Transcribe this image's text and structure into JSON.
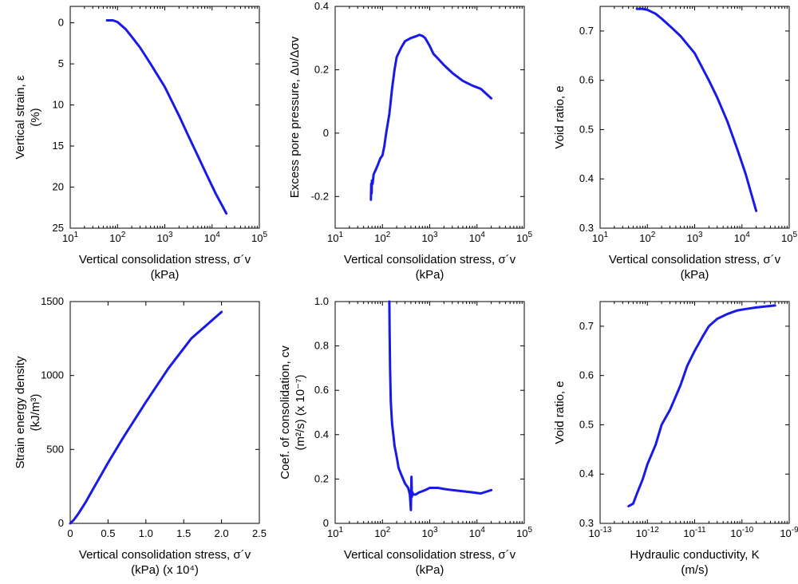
{
  "figure": {
    "series_color": "#1a1ae6",
    "axis_color": "#000000"
  },
  "chart_data": [
    {
      "id": "strain",
      "type": "line",
      "x_scale": "log",
      "xlim": [
        10,
        100000
      ],
      "xticks": [
        10,
        100,
        1000,
        10000,
        100000
      ],
      "ylim": [
        25,
        -2
      ],
      "y_inverted": true,
      "yticks": [
        0,
        5,
        10,
        15,
        20,
        25
      ],
      "xlabel": "Vertical consolidation stress, σ´v",
      "xlabel_line2": "(kPa)",
      "ylabel": "Vertical strain, ε",
      "ylabel_line2": "(%)",
      "series": [
        {
          "x": [
            60,
            80,
            100,
            150,
            200,
            300,
            500,
            1000,
            2000,
            3000,
            5000,
            8000,
            12000,
            20000
          ],
          "y": [
            -0.3,
            -0.3,
            -0.1,
            0.8,
            1.7,
            3.0,
            5.0,
            7.8,
            11.3,
            13.5,
            16.2,
            18.7,
            20.8,
            23.2
          ]
        }
      ]
    },
    {
      "id": "pore",
      "type": "line",
      "x_scale": "log",
      "xlim": [
        10,
        100000
      ],
      "xticks": [
        10,
        100,
        1000,
        10000,
        100000
      ],
      "ylim": [
        -0.3,
        0.4
      ],
      "yticks": [
        -0.2,
        0,
        0.2,
        0.4
      ],
      "ytick_labels": [
        "-0.2",
        "0",
        "0.2",
        "0.4"
      ],
      "xlabel": "Vertical consolidation stress, σ´v",
      "xlabel_line2": "(kPa)",
      "ylabel": "Excess pore pressure, Δυ/Δσv",
      "series": [
        {
          "x": [
            57,
            58,
            59,
            60,
            62,
            65,
            70,
            75,
            80,
            90,
            100,
            110,
            120,
            140,
            160,
            180,
            200,
            250,
            300,
            400,
            500,
            600,
            700,
            800,
            1000,
            1200,
            1500,
            2000,
            3000,
            5000,
            8000,
            12000,
            20000
          ],
          "y": [
            -0.21,
            -0.16,
            -0.19,
            -0.15,
            -0.16,
            -0.13,
            -0.12,
            -0.11,
            -0.1,
            -0.08,
            -0.07,
            -0.04,
            0.0,
            0.06,
            0.14,
            0.2,
            0.24,
            0.27,
            0.29,
            0.3,
            0.305,
            0.31,
            0.307,
            0.3,
            0.275,
            0.25,
            0.235,
            0.215,
            0.19,
            0.165,
            0.15,
            0.14,
            0.11
          ]
        }
      ]
    },
    {
      "id": "void_stress",
      "type": "line",
      "x_scale": "log",
      "xlim": [
        10,
        100000
      ],
      "xticks": [
        10,
        100,
        1000,
        10000,
        100000
      ],
      "ylim": [
        0.3,
        0.75
      ],
      "yticks": [
        0.3,
        0.4,
        0.5,
        0.6,
        0.7
      ],
      "ytick_labels": [
        "0.3",
        "0.4",
        "0.5",
        "0.6",
        "0.7"
      ],
      "xlabel": "Vertical consolidation stress, σ´v",
      "xlabel_line2": "(kPa)",
      "ylabel": "Void ratio, e",
      "series": [
        {
          "x": [
            60,
            80,
            100,
            150,
            200,
            300,
            500,
            1000,
            2000,
            3000,
            5000,
            8000,
            12000,
            20000
          ],
          "y": [
            0.745,
            0.745,
            0.743,
            0.735,
            0.725,
            0.71,
            0.69,
            0.655,
            0.6,
            0.565,
            0.515,
            0.46,
            0.41,
            0.335
          ]
        }
      ]
    },
    {
      "id": "energy",
      "type": "line",
      "x_scale": "linear",
      "xlim": [
        0,
        2.5
      ],
      "xticks": [
        0,
        0.5,
        1.0,
        1.5,
        2.0,
        2.5
      ],
      "xtick_labels": [
        "0",
        "0.5",
        "1.0",
        "1.5",
        "2.0",
        "2.5"
      ],
      "ylim": [
        0,
        1500
      ],
      "yticks": [
        0,
        500,
        1000,
        1500
      ],
      "xlabel": "Vertical consolidation stress, σ´v",
      "xlabel_line2": "(kPa) (x 10⁴)",
      "ylabel": "Strain energy density",
      "ylabel_line2": "(kJ/m³)",
      "series": [
        {
          "x": [
            0,
            0.05,
            0.1,
            0.2,
            0.3,
            0.4,
            0.5,
            0.7,
            1.0,
            1.3,
            1.6,
            1.8,
            2.0
          ],
          "y": [
            0,
            25,
            60,
            140,
            230,
            320,
            410,
            580,
            820,
            1050,
            1250,
            1340,
            1430
          ]
        }
      ]
    },
    {
      "id": "coef",
      "type": "line",
      "x_scale": "log",
      "xlim": [
        10,
        100000
      ],
      "xticks": [
        10,
        100,
        1000,
        10000,
        100000
      ],
      "ylim": [
        0,
        1.0
      ],
      "yticks": [
        0,
        0.2,
        0.4,
        0.6,
        0.8,
        1.0
      ],
      "ytick_labels": [
        "0",
        "0.2",
        "0.4",
        "0.6",
        "0.8",
        "1.0"
      ],
      "xlabel": "Vertical consolidation stress, σ´v",
      "xlabel_line2": "(kPa)",
      "ylabel": "Coef. of consolidation, cv",
      "ylabel_line2": "(m²/s) (x 10⁻⁷)",
      "series": [
        {
          "x": [
            140,
            142,
            145,
            150,
            155,
            160,
            170,
            180,
            200,
            220,
            250,
            300,
            350,
            380,
            400,
            410,
            420,
            430,
            450,
            500,
            600,
            800,
            1000,
            1500,
            2000,
            3000,
            5000,
            8000,
            12000,
            20000
          ],
          "y": [
            1.0,
            0.85,
            0.7,
            0.55,
            0.5,
            0.45,
            0.4,
            0.35,
            0.3,
            0.25,
            0.22,
            0.18,
            0.16,
            0.13,
            0.06,
            0.21,
            0.12,
            0.14,
            0.13,
            0.13,
            0.14,
            0.15,
            0.16,
            0.16,
            0.155,
            0.15,
            0.145,
            0.14,
            0.135,
            0.15
          ]
        }
      ]
    },
    {
      "id": "void_k",
      "type": "line",
      "x_scale": "log",
      "xlim": [
        1e-13,
        1e-09
      ],
      "xticks": [
        1e-13,
        1e-12,
        1e-11,
        1e-10,
        1e-09
      ],
      "ylim": [
        0.3,
        0.75
      ],
      "yticks": [
        0.3,
        0.4,
        0.5,
        0.6,
        0.7
      ],
      "ytick_labels": [
        "0.3",
        "0.4",
        "0.5",
        "0.6",
        "0.7"
      ],
      "xlabel": "Hydraulic conductivity, K",
      "xlabel_line2": "(m/s)",
      "ylabel": "Void ratio, e",
      "series": [
        {
          "x": [
            4e-13,
            5e-13,
            6e-13,
            8e-13,
            1e-12,
            1.5e-12,
            2e-12,
            3e-12,
            5e-12,
            7e-12,
            1e-11,
            1.5e-11,
            2e-11,
            3e-11,
            5e-11,
            8e-11,
            1.2e-10,
            2e-10,
            3e-10,
            5e-10
          ],
          "y": [
            0.335,
            0.34,
            0.36,
            0.39,
            0.42,
            0.46,
            0.5,
            0.53,
            0.58,
            0.62,
            0.65,
            0.68,
            0.7,
            0.715,
            0.725,
            0.732,
            0.735,
            0.738,
            0.74,
            0.742
          ]
        }
      ]
    }
  ]
}
